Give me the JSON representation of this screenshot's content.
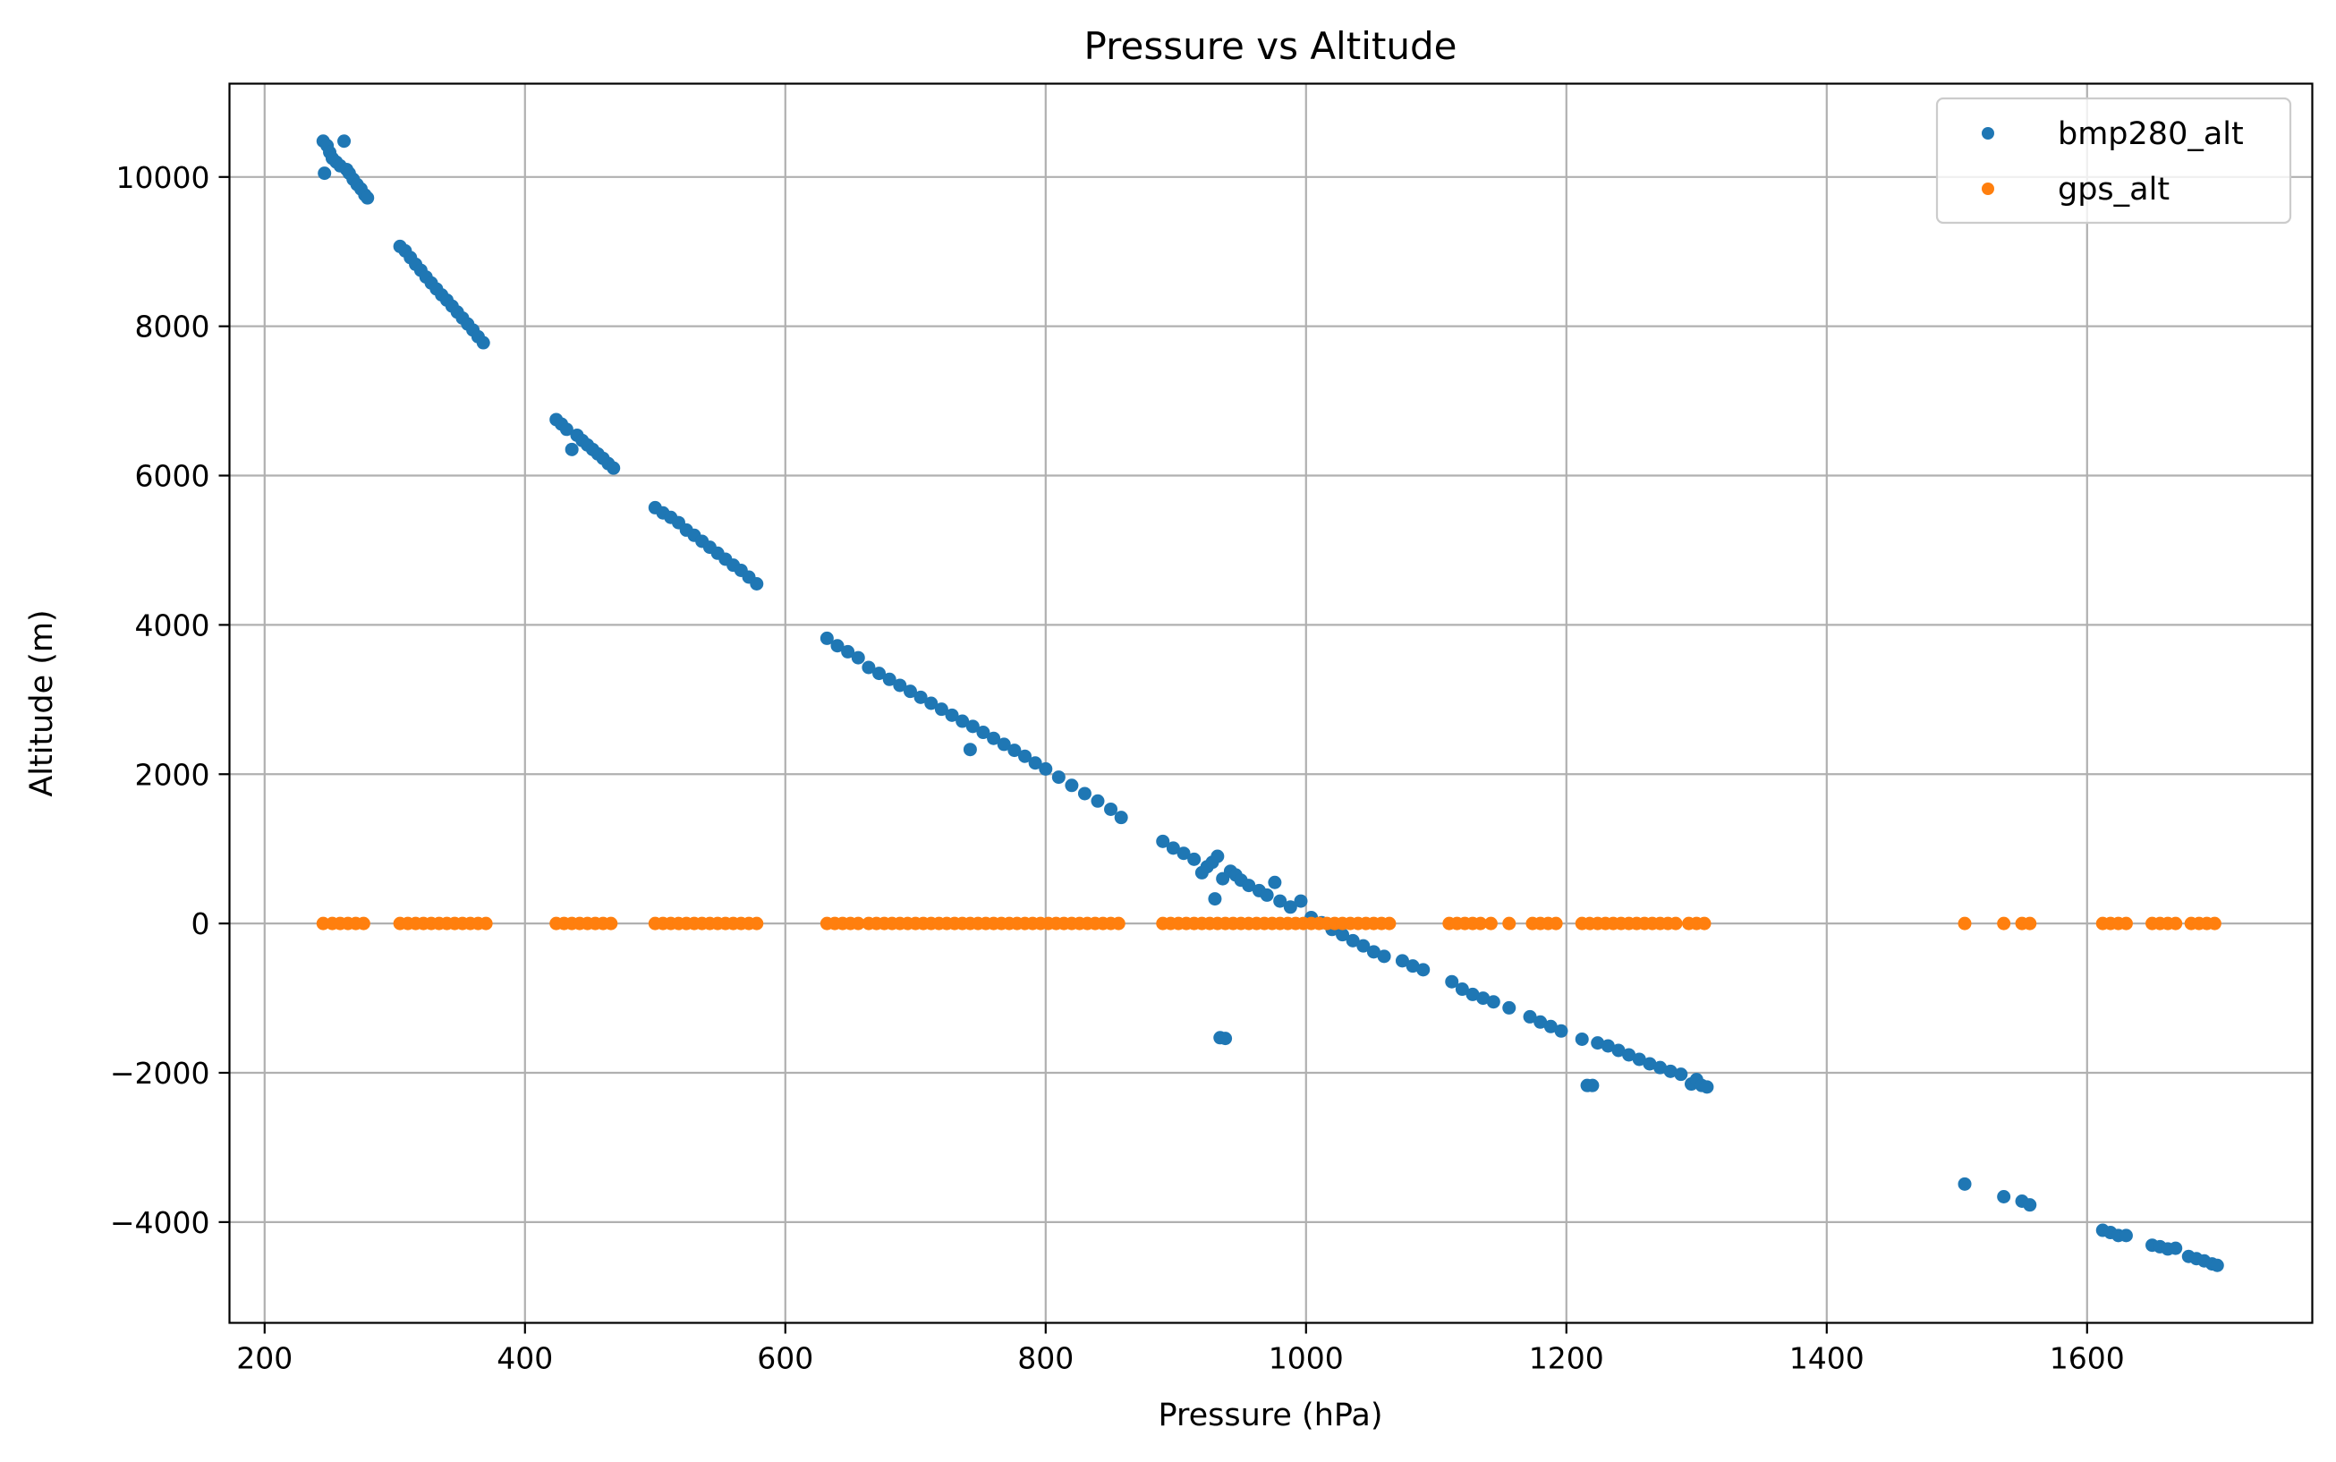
{
  "chart_data": {
    "type": "scatter",
    "title": "Pressure vs Altitude",
    "xlabel": "Pressure (hPa)",
    "ylabel": "Altitude (m)",
    "xlim": [
      173,
      1773
    ],
    "ylim": [
      -5350,
      11250
    ],
    "xticks": [
      200,
      400,
      600,
      800,
      1000,
      1200,
      1400,
      1600
    ],
    "yticks": [
      -4000,
      -2000,
      0,
      2000,
      4000,
      6000,
      8000,
      10000
    ],
    "xtick_labels": [
      "200",
      "400",
      "600",
      "800",
      "1000",
      "1200",
      "1400",
      "1600"
    ],
    "ytick_labels": [
      "−4000",
      "−2000",
      "0",
      "2000",
      "4000",
      "6000",
      "8000",
      "10000"
    ],
    "grid": true,
    "legend_position": "top-right",
    "series": [
      {
        "name": "bmp280_alt",
        "color": "#1f77b4",
        "points": [
          [
            245,
            10480
          ],
          [
            248,
            10420
          ],
          [
            250,
            10330
          ],
          [
            252,
            10250
          ],
          [
            246,
            10050
          ],
          [
            255,
            10200
          ],
          [
            258,
            10150
          ],
          [
            261,
            10480
          ],
          [
            263,
            10100
          ],
          [
            265,
            10050
          ],
          [
            268,
            9970
          ],
          [
            271,
            9900
          ],
          [
            274,
            9840
          ],
          [
            277,
            9760
          ],
          [
            279,
            9720
          ],
          [
            304,
            9070
          ],
          [
            308,
            9010
          ],
          [
            312,
            8920
          ],
          [
            316,
            8830
          ],
          [
            320,
            8750
          ],
          [
            324,
            8660
          ],
          [
            328,
            8580
          ],
          [
            332,
            8500
          ],
          [
            336,
            8420
          ],
          [
            340,
            8350
          ],
          [
            344,
            8270
          ],
          [
            348,
            8190
          ],
          [
            352,
            8110
          ],
          [
            356,
            8030
          ],
          [
            360,
            7950
          ],
          [
            364,
            7860
          ],
          [
            368,
            7780
          ],
          [
            424,
            6750
          ],
          [
            428,
            6690
          ],
          [
            432,
            6620
          ],
          [
            436,
            6350
          ],
          [
            440,
            6540
          ],
          [
            444,
            6470
          ],
          [
            448,
            6410
          ],
          [
            452,
            6350
          ],
          [
            456,
            6290
          ],
          [
            460,
            6230
          ],
          [
            464,
            6160
          ],
          [
            468,
            6100
          ],
          [
            500,
            5570
          ],
          [
            506,
            5500
          ],
          [
            512,
            5440
          ],
          [
            518,
            5370
          ],
          [
            524,
            5270
          ],
          [
            530,
            5200
          ],
          [
            536,
            5120
          ],
          [
            542,
            5040
          ],
          [
            548,
            4960
          ],
          [
            554,
            4880
          ],
          [
            560,
            4800
          ],
          [
            566,
            4730
          ],
          [
            572,
            4640
          ],
          [
            578,
            4550
          ],
          [
            632,
            3820
          ],
          [
            640,
            3720
          ],
          [
            648,
            3640
          ],
          [
            656,
            3560
          ],
          [
            664,
            3430
          ],
          [
            672,
            3350
          ],
          [
            680,
            3270
          ],
          [
            688,
            3190
          ],
          [
            696,
            3110
          ],
          [
            704,
            3030
          ],
          [
            712,
            2950
          ],
          [
            720,
            2870
          ],
          [
            728,
            2790
          ],
          [
            736,
            2710
          ],
          [
            742,
            2330
          ],
          [
            744,
            2640
          ],
          [
            752,
            2560
          ],
          [
            760,
            2480
          ],
          [
            768,
            2400
          ],
          [
            776,
            2320
          ],
          [
            784,
            2240
          ],
          [
            792,
            2150
          ],
          [
            800,
            2070
          ],
          [
            810,
            1960
          ],
          [
            820,
            1850
          ],
          [
            830,
            1740
          ],
          [
            840,
            1640
          ],
          [
            850,
            1530
          ],
          [
            858,
            1420
          ],
          [
            890,
            1100
          ],
          [
            898,
            1010
          ],
          [
            906,
            940
          ],
          [
            914,
            860
          ],
          [
            920,
            680
          ],
          [
            924,
            760
          ],
          [
            928,
            820
          ],
          [
            930,
            330
          ],
          [
            932,
            900
          ],
          [
            934,
            -1530
          ],
          [
            938,
            -1540
          ],
          [
            936,
            600
          ],
          [
            942,
            700
          ],
          [
            946,
            650
          ],
          [
            950,
            580
          ],
          [
            956,
            510
          ],
          [
            964,
            440
          ],
          [
            970,
            380
          ],
          [
            976,
            550
          ],
          [
            980,
            300
          ],
          [
            988,
            220
          ],
          [
            996,
            300
          ],
          [
            1004,
            80
          ],
          [
            1012,
            10
          ],
          [
            1020,
            -80
          ],
          [
            1028,
            -150
          ],
          [
            1036,
            -230
          ],
          [
            1044,
            -300
          ],
          [
            1052,
            -380
          ],
          [
            1060,
            -440
          ],
          [
            1074,
            -500
          ],
          [
            1082,
            -570
          ],
          [
            1090,
            -620
          ],
          [
            1112,
            -780
          ],
          [
            1120,
            -880
          ],
          [
            1128,
            -950
          ],
          [
            1136,
            -1000
          ],
          [
            1144,
            -1050
          ],
          [
            1156,
            -1130
          ],
          [
            1172,
            -1250
          ],
          [
            1180,
            -1320
          ],
          [
            1188,
            -1380
          ],
          [
            1196,
            -1440
          ],
          [
            1212,
            -1550
          ],
          [
            1216,
            -2170
          ],
          [
            1220,
            -2170
          ],
          [
            1224,
            -1600
          ],
          [
            1232,
            -1640
          ],
          [
            1240,
            -1700
          ],
          [
            1248,
            -1760
          ],
          [
            1256,
            -1820
          ],
          [
            1264,
            -1880
          ],
          [
            1272,
            -1930
          ],
          [
            1280,
            -1980
          ],
          [
            1288,
            -2020
          ],
          [
            1296,
            -2150
          ],
          [
            1300,
            -2090
          ],
          [
            1304,
            -2170
          ],
          [
            1308,
            -2190
          ],
          [
            1506,
            -3490
          ],
          [
            1536,
            -3660
          ],
          [
            1550,
            -3720
          ],
          [
            1556,
            -3770
          ],
          [
            1612,
            -4110
          ],
          [
            1618,
            -4140
          ],
          [
            1624,
            -4180
          ],
          [
            1630,
            -4180
          ],
          [
            1650,
            -4310
          ],
          [
            1656,
            -4330
          ],
          [
            1662,
            -4360
          ],
          [
            1668,
            -4350
          ],
          [
            1678,
            -4460
          ],
          [
            1684,
            -4490
          ],
          [
            1690,
            -4520
          ],
          [
            1696,
            -4560
          ],
          [
            1700,
            -4580
          ]
        ]
      },
      {
        "name": "gps_alt",
        "color": "#ff7f0e",
        "points": [
          [
            245,
            0
          ],
          [
            252,
            0
          ],
          [
            258,
            0
          ],
          [
            264,
            0
          ],
          [
            270,
            0
          ],
          [
            276,
            0
          ],
          [
            304,
            0
          ],
          [
            310,
            0
          ],
          [
            316,
            0
          ],
          [
            322,
            0
          ],
          [
            328,
            0
          ],
          [
            334,
            0
          ],
          [
            340,
            0
          ],
          [
            346,
            0
          ],
          [
            352,
            0
          ],
          [
            358,
            0
          ],
          [
            364,
            0
          ],
          [
            370,
            0
          ],
          [
            424,
            0
          ],
          [
            430,
            0
          ],
          [
            436,
            0
          ],
          [
            442,
            0
          ],
          [
            448,
            0
          ],
          [
            454,
            0
          ],
          [
            460,
            0
          ],
          [
            466,
            0
          ],
          [
            500,
            0
          ],
          [
            506,
            0
          ],
          [
            512,
            0
          ],
          [
            518,
            0
          ],
          [
            524,
            0
          ],
          [
            530,
            0
          ],
          [
            536,
            0
          ],
          [
            542,
            0
          ],
          [
            548,
            0
          ],
          [
            554,
            0
          ],
          [
            560,
            0
          ],
          [
            566,
            0
          ],
          [
            572,
            0
          ],
          [
            578,
            0
          ],
          [
            632,
            0
          ],
          [
            638,
            0
          ],
          [
            644,
            0
          ],
          [
            650,
            0
          ],
          [
            656,
            0
          ],
          [
            664,
            0
          ],
          [
            670,
            0
          ],
          [
            676,
            0
          ],
          [
            682,
            0
          ],
          [
            688,
            0
          ],
          [
            694,
            0
          ],
          [
            700,
            0
          ],
          [
            706,
            0
          ],
          [
            712,
            0
          ],
          [
            718,
            0
          ],
          [
            724,
            0
          ],
          [
            730,
            0
          ],
          [
            736,
            0
          ],
          [
            742,
            0
          ],
          [
            748,
            0
          ],
          [
            754,
            0
          ],
          [
            760,
            0
          ],
          [
            766,
            0
          ],
          [
            772,
            0
          ],
          [
            778,
            0
          ],
          [
            784,
            0
          ],
          [
            790,
            0
          ],
          [
            796,
            0
          ],
          [
            802,
            0
          ],
          [
            808,
            0
          ],
          [
            814,
            0
          ],
          [
            820,
            0
          ],
          [
            826,
            0
          ],
          [
            832,
            0
          ],
          [
            838,
            0
          ],
          [
            844,
            0
          ],
          [
            850,
            0
          ],
          [
            856,
            0
          ],
          [
            890,
            0
          ],
          [
            896,
            0
          ],
          [
            902,
            0
          ],
          [
            908,
            0
          ],
          [
            914,
            0
          ],
          [
            920,
            0
          ],
          [
            926,
            0
          ],
          [
            932,
            0
          ],
          [
            938,
            0
          ],
          [
            944,
            0
          ],
          [
            950,
            0
          ],
          [
            956,
            0
          ],
          [
            962,
            0
          ],
          [
            968,
            0
          ],
          [
            974,
            0
          ],
          [
            980,
            0
          ],
          [
            986,
            0
          ],
          [
            992,
            0
          ],
          [
            998,
            0
          ],
          [
            1004,
            0
          ],
          [
            1010,
            0
          ],
          [
            1016,
            0
          ],
          [
            1022,
            0
          ],
          [
            1028,
            0
          ],
          [
            1034,
            0
          ],
          [
            1040,
            0
          ],
          [
            1046,
            0
          ],
          [
            1052,
            0
          ],
          [
            1058,
            0
          ],
          [
            1064,
            0
          ],
          [
            1110,
            0
          ],
          [
            1116,
            0
          ],
          [
            1122,
            0
          ],
          [
            1128,
            0
          ],
          [
            1134,
            0
          ],
          [
            1142,
            0
          ],
          [
            1156,
            0
          ],
          [
            1174,
            0
          ],
          [
            1180,
            0
          ],
          [
            1186,
            0
          ],
          [
            1192,
            0
          ],
          [
            1212,
            0
          ],
          [
            1218,
            0
          ],
          [
            1224,
            0
          ],
          [
            1230,
            0
          ],
          [
            1236,
            0
          ],
          [
            1242,
            0
          ],
          [
            1248,
            0
          ],
          [
            1254,
            0
          ],
          [
            1260,
            0
          ],
          [
            1266,
            0
          ],
          [
            1272,
            0
          ],
          [
            1278,
            0
          ],
          [
            1284,
            0
          ],
          [
            1294,
            0
          ],
          [
            1300,
            0
          ],
          [
            1306,
            0
          ],
          [
            1506,
            0
          ],
          [
            1536,
            0
          ],
          [
            1550,
            0
          ],
          [
            1556,
            0
          ],
          [
            1612,
            0
          ],
          [
            1618,
            0
          ],
          [
            1624,
            0
          ],
          [
            1630,
            0
          ],
          [
            1650,
            0
          ],
          [
            1656,
            0
          ],
          [
            1662,
            0
          ],
          [
            1668,
            0
          ],
          [
            1680,
            0
          ],
          [
            1686,
            0
          ],
          [
            1692,
            0
          ],
          [
            1698,
            0
          ]
        ]
      }
    ]
  }
}
